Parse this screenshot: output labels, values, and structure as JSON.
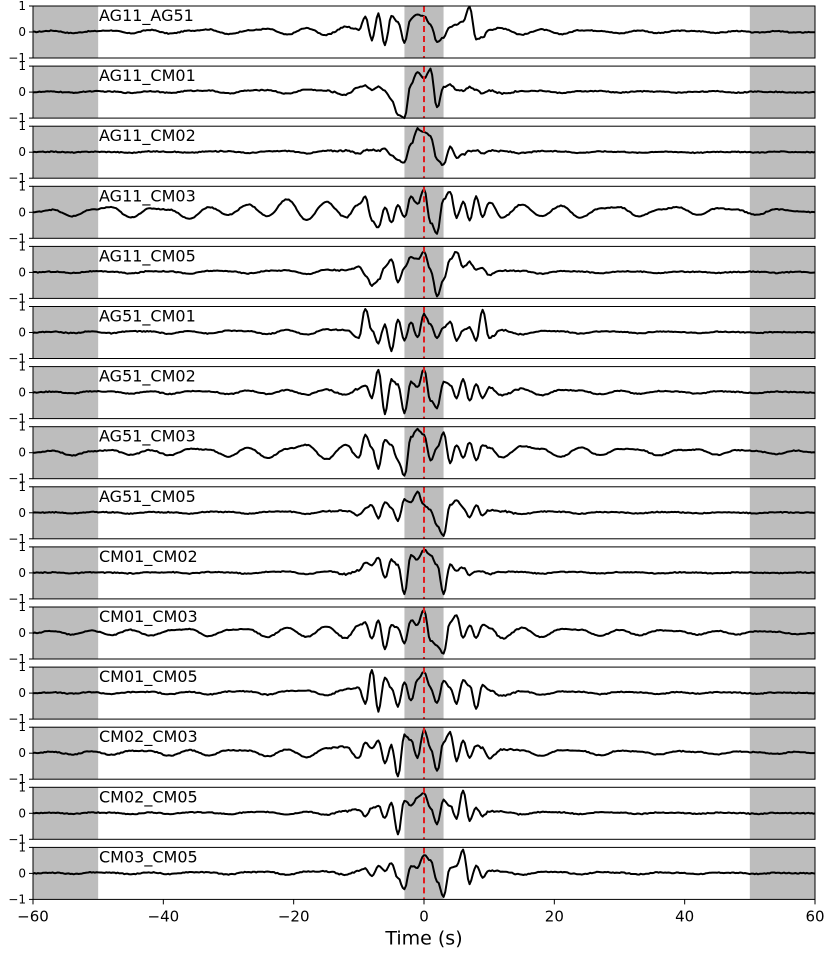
{
  "chart_data": {
    "type": "line",
    "xlabel": "Time (s)",
    "xlim": [
      -60,
      60
    ],
    "ylim": [
      -1,
      1
    ],
    "x_ticks": [
      "−60",
      "−40",
      "−20",
      "0",
      "20",
      "40",
      "60"
    ],
    "x_tick_values": [
      -60,
      -40,
      -20,
      0,
      20,
      40,
      60
    ],
    "y_ticks": [
      "1",
      "0",
      "−1"
    ],
    "y_tick_values": [
      1,
      0,
      -1
    ],
    "shaded_regions": [
      [
        -60,
        -50
      ],
      [
        -3,
        3
      ],
      [
        50,
        60
      ]
    ],
    "reference_line_x": 0,
    "colors": {
      "trace": "#000000",
      "reference_line": "#e41a1c",
      "shade": "#bdbdbd"
    },
    "grid": false,
    "sample_times": [
      -60,
      -57,
      -54,
      -51,
      -48,
      -45,
      -42,
      -39,
      -36,
      -33,
      -30,
      -27,
      -24,
      -21,
      -18,
      -15,
      -12,
      -10,
      -9,
      -8,
      -7,
      -6,
      -5,
      -4,
      -3,
      -2,
      -1,
      0,
      1,
      2,
      3,
      4,
      5,
      6,
      7,
      8,
      9,
      10,
      12,
      15,
      18,
      21,
      24,
      27,
      30,
      33,
      36,
      39,
      42,
      45,
      48,
      51,
      54,
      57,
      60
    ],
    "series": [
      {
        "name": "AG11_AG51",
        "values": [
          0,
          0.05,
          -0.04,
          0.03,
          0.06,
          -0.05,
          0.08,
          -0.06,
          0.05,
          0.1,
          -0.08,
          0.06,
          0.12,
          -0.1,
          0.15,
          -0.12,
          0.2,
          0.1,
          0.6,
          -0.3,
          0.7,
          -0.5,
          0.6,
          0.4,
          -0.4,
          0.5,
          0.7,
          0.6,
          0.3,
          -0.4,
          -0.2,
          0.2,
          0.3,
          0.4,
          1.0,
          -0.3,
          -0.2,
          0.1,
          0.15,
          -0.1,
          0.1,
          -0.08,
          0.07,
          0.05,
          -0.05,
          0.06,
          -0.04,
          0.05,
          0.03,
          -0.03,
          0.04,
          -0.02,
          0.03,
          -0.02,
          0
        ]
      },
      {
        "name": "AG11_CM01",
        "values": [
          0,
          0.02,
          -0.02,
          0.03,
          0.02,
          -0.03,
          0.04,
          -0.03,
          0.05,
          0.06,
          -0.05,
          0.06,
          0.08,
          -0.06,
          0.1,
          0.05,
          -0.1,
          0.2,
          0.25,
          0.1,
          0.2,
          0.05,
          -0.3,
          -0.9,
          -1.0,
          0.3,
          0.8,
          0.5,
          0.9,
          -0.6,
          0.2,
          0.3,
          0.1,
          0.05,
          0.2,
          0.1,
          -0.05,
          0.06,
          -0.05,
          0.04,
          0.05,
          -0.03,
          0.03,
          0.04,
          -0.02,
          0.03,
          0.02,
          -0.02,
          0.02,
          0.03,
          -0.02,
          0.02,
          0.01,
          -0.02,
          0
        ]
      },
      {
        "name": "AG11_CM02",
        "values": [
          0,
          0.02,
          -0.01,
          0.02,
          0.01,
          -0.02,
          0.03,
          0.02,
          -0.02,
          0.03,
          0.04,
          -0.03,
          0.03,
          0.05,
          -0.04,
          0.05,
          0.06,
          -0.05,
          0.08,
          0.1,
          0.05,
          0.12,
          -0.1,
          -0.3,
          -0.4,
          0.3,
          0.9,
          0.8,
          0.6,
          -0.3,
          -0.5,
          0.2,
          -0.2,
          -0.1,
          0.05,
          0.08,
          -0.05,
          0.06,
          0.04,
          -0.03,
          0.04,
          0.03,
          -0.02,
          0.03,
          0.02,
          -0.02,
          0.02,
          0.01,
          -0.02,
          0.02,
          0.01,
          -0.01,
          0.02,
          0.01,
          0
        ]
      },
      {
        "name": "AG11_CM03",
        "values": [
          0,
          0.1,
          -0.15,
          0.1,
          0.2,
          -0.2,
          0.15,
          0.1,
          -0.25,
          0.2,
          -0.1,
          0.3,
          -0.15,
          0.5,
          -0.3,
          0.4,
          -0.2,
          0.3,
          0.6,
          -0.3,
          -0.6,
          0.2,
          -0.4,
          0.3,
          -0.2,
          0.6,
          0.3,
          0.9,
          -0.4,
          -0.8,
          0.5,
          0.8,
          -0.2,
          0.4,
          -0.3,
          0.6,
          -0.2,
          0.4,
          -0.2,
          0.3,
          -0.15,
          0.25,
          -0.2,
          0.15,
          0.2,
          -0.15,
          0.1,
          0.2,
          -0.1,
          0.15,
          0.1,
          -0.1,
          0.12,
          0.05,
          0
        ]
      },
      {
        "name": "AG11_CM05",
        "values": [
          0,
          0.03,
          -0.02,
          0.04,
          0.03,
          -0.04,
          0.05,
          0.04,
          -0.05,
          0.06,
          0.05,
          -0.04,
          0.06,
          0.08,
          -0.06,
          0.1,
          0.08,
          0.2,
          -0.1,
          -0.5,
          -0.3,
          0.2,
          0.5,
          -0.4,
          0.2,
          0.6,
          0.5,
          0.8,
          0.1,
          -0.9,
          -0.3,
          0.5,
          0.8,
          0.2,
          0.4,
          0.1,
          0.15,
          -0.1,
          0.08,
          0.06,
          -0.05,
          0.05,
          0.04,
          -0.03,
          0.04,
          0.03,
          -0.02,
          0.03,
          0.02,
          -0.02,
          0.02,
          0.03,
          -0.02,
          0.02,
          0
        ]
      },
      {
        "name": "AG51_CM01",
        "values": [
          0,
          0.03,
          -0.02,
          0.04,
          -0.03,
          0.05,
          0.04,
          -0.05,
          0.06,
          -0.04,
          0.07,
          0.05,
          -0.06,
          0.1,
          -0.08,
          0.12,
          0.1,
          -0.2,
          0.9,
          0.1,
          -0.4,
          0.3,
          -0.7,
          0.5,
          -0.3,
          0.4,
          -0.2,
          0.7,
          0.3,
          -0.2,
          0.2,
          0.4,
          -0.3,
          0.1,
          0.2,
          -0.3,
          0.9,
          -0.2,
          0.1,
          -0.08,
          0.06,
          0.05,
          -0.04,
          0.04,
          0.03,
          -0.03,
          0.04,
          0.02,
          -0.02,
          0.03,
          0.02,
          -0.02,
          0.02,
          0.01,
          0
        ]
      },
      {
        "name": "AG51_CM02",
        "values": [
          0,
          0.04,
          -0.03,
          0.05,
          0.04,
          -0.04,
          0.05,
          -0.05,
          0.06,
          0.05,
          -0.06,
          0.08,
          -0.05,
          0.1,
          -0.08,
          0.12,
          -0.1,
          0.15,
          0.3,
          -0.2,
          0.9,
          -0.8,
          0.5,
          0.3,
          -0.8,
          0.4,
          0.2,
          0.9,
          -0.3,
          -0.6,
          0.4,
          0.3,
          -0.2,
          0.5,
          -0.3,
          0.3,
          -0.2,
          0.2,
          -0.1,
          0.15,
          -0.1,
          0.1,
          0.08,
          -0.06,
          0.07,
          -0.05,
          0.06,
          0.04,
          -0.04,
          0.05,
          0.03,
          -0.03,
          0.04,
          0.02,
          0
        ]
      },
      {
        "name": "AG51_CM03",
        "values": [
          0,
          0.08,
          -0.1,
          0.06,
          0.1,
          -0.08,
          0.1,
          -0.1,
          0.15,
          0.12,
          -0.15,
          0.2,
          -0.2,
          0.15,
          0.3,
          -0.25,
          0.3,
          -0.2,
          0.7,
          0.2,
          -0.6,
          0.5,
          0.3,
          -0.3,
          -0.9,
          0.6,
          0.9,
          0.7,
          -0.3,
          0.2,
          0.8,
          -0.4,
          0.3,
          -0.2,
          0.4,
          -0.3,
          0.3,
          0.2,
          -0.2,
          0.25,
          0.15,
          -0.15,
          0.2,
          -0.1,
          0.15,
          0.12,
          -0.1,
          0.1,
          0.12,
          -0.08,
          0.1,
          0.06,
          -0.05,
          0.08,
          0
        ]
      },
      {
        "name": "AG51_CM05",
        "values": [
          0,
          0.02,
          -0.02,
          0.03,
          0.02,
          -0.03,
          0.03,
          0.02,
          -0.03,
          0.04,
          0.03,
          -0.03,
          0.04,
          0.05,
          -0.04,
          0.06,
          0.08,
          -0.1,
          0.15,
          0.3,
          -0.2,
          0.4,
          0.2,
          -0.3,
          0.5,
          0.4,
          0.8,
          0.3,
          0.1,
          -0.5,
          -0.9,
          0.3,
          0.5,
          0.2,
          -0.2,
          0.3,
          -0.1,
          0.1,
          0.06,
          -0.05,
          0.05,
          0.04,
          -0.03,
          0.03,
          0.02,
          -0.02,
          0.03,
          0.02,
          -0.02,
          0.02,
          0.01,
          -0.02,
          0.02,
          0.01,
          0
        ]
      },
      {
        "name": "CM01_CM02",
        "values": [
          0,
          0.02,
          -0.01,
          0.02,
          0.01,
          -0.02,
          0.02,
          0.03,
          -0.02,
          0.03,
          0.02,
          -0.03,
          0.04,
          0.05,
          -0.04,
          0.06,
          -0.05,
          0.1,
          0.4,
          0.3,
          0.6,
          -0.2,
          0.5,
          0.3,
          -0.8,
          0.7,
          0.5,
          0.9,
          0.7,
          0.3,
          -0.8,
          0.3,
          0.1,
          0.2,
          -0.1,
          0.08,
          0.06,
          -0.05,
          0.05,
          0.04,
          -0.03,
          0.04,
          0.03,
          -0.02,
          0.03,
          0.02,
          -0.02,
          0.02,
          0.01,
          -0.02,
          0.02,
          0.01,
          -0.01,
          0.02,
          0
        ]
      },
      {
        "name": "CM01_CM03",
        "values": [
          0,
          0.08,
          -0.06,
          0.1,
          -0.08,
          0.12,
          -0.1,
          0.1,
          0.15,
          -0.12,
          0.12,
          0.15,
          -0.15,
          0.2,
          -0.15,
          0.25,
          -0.2,
          0.3,
          0.4,
          -0.2,
          0.5,
          -0.6,
          0.3,
          0.2,
          -0.4,
          0.5,
          0.3,
          0.9,
          -0.3,
          -0.5,
          -0.8,
          0.4,
          0.7,
          -0.2,
          0.3,
          -0.2,
          0.3,
          0.2,
          -0.2,
          0.2,
          -0.15,
          0.15,
          0.12,
          -0.1,
          0.12,
          -0.08,
          0.1,
          0.08,
          -0.06,
          0.08,
          -0.05,
          0.06,
          0.05,
          -0.04,
          0
        ]
      },
      {
        "name": "CM01_CM05",
        "values": [
          0,
          0.03,
          -0.02,
          0.04,
          -0.03,
          0.04,
          0.05,
          -0.04,
          0.05,
          -0.05,
          0.06,
          0.07,
          -0.06,
          0.08,
          0.1,
          -0.08,
          0.15,
          0.2,
          -0.4,
          0.9,
          -0.7,
          0.6,
          0.2,
          -0.5,
          0.4,
          -0.3,
          0.5,
          0.8,
          0.2,
          -0.4,
          0.5,
          0.2,
          -0.4,
          0.5,
          0.3,
          -0.6,
          0.3,
          0.1,
          -0.1,
          0.08,
          -0.06,
          0.06,
          0.05,
          -0.04,
          0.05,
          0.03,
          -0.03,
          0.04,
          -0.02,
          0.03,
          0.02,
          -0.02,
          0.02,
          0.01,
          0
        ]
      },
      {
        "name": "CM02_CM03",
        "values": [
          0,
          0.06,
          -0.05,
          0.08,
          -0.06,
          0.1,
          0.08,
          -0.1,
          0.12,
          -0.08,
          0.12,
          0.1,
          -0.12,
          0.15,
          -0.15,
          0.2,
          0.25,
          -0.2,
          0.4,
          0.2,
          0.5,
          -0.4,
          0.3,
          -0.9,
          0.7,
          0.5,
          -0.2,
          0.9,
          0.2,
          -0.7,
          0.4,
          0.8,
          -0.3,
          0.5,
          -0.2,
          0.3,
          0.2,
          -0.2,
          0.15,
          0.12,
          -0.1,
          0.12,
          0.1,
          -0.08,
          0.1,
          0.06,
          -0.05,
          0.08,
          0.05,
          -0.04,
          0.06,
          0.04,
          -0.03,
          0.05,
          0
        ]
      },
      {
        "name": "CM02_CM05",
        "values": [
          0,
          0.02,
          -0.02,
          0.03,
          0.02,
          -0.03,
          0.03,
          -0.02,
          0.04,
          0.03,
          -0.03,
          0.04,
          0.05,
          -0.04,
          0.06,
          -0.05,
          0.08,
          0.15,
          -0.1,
          0.2,
          0.3,
          -0.2,
          0.4,
          -0.8,
          0.5,
          0.3,
          0.6,
          0.8,
          0.2,
          -0.4,
          0.5,
          0.3,
          -0.2,
          0.9,
          -0.3,
          0.2,
          -0.1,
          0.08,
          0.06,
          -0.05,
          0.05,
          0.04,
          -0.03,
          0.04,
          0.03,
          -0.02,
          0.03,
          0.02,
          -0.02,
          0.02,
          0.01,
          -0.02,
          0.02,
          0.01,
          0
        ]
      },
      {
        "name": "CM03_CM05",
        "values": [
          0,
          0.03,
          -0.02,
          0.04,
          0.03,
          -0.03,
          0.04,
          -0.03,
          0.05,
          0.04,
          -0.04,
          0.05,
          0.06,
          -0.05,
          0.07,
          0.08,
          -0.06,
          0.1,
          0.2,
          -0.1,
          0.3,
          0.1,
          0.4,
          -0.2,
          -0.6,
          0.3,
          0.2,
          0.7,
          0.5,
          -0.3,
          -0.9,
          0.2,
          0.3,
          0.9,
          -0.4,
          0.3,
          -0.15,
          0.1,
          0.08,
          -0.06,
          0.06,
          0.05,
          -0.04,
          0.05,
          0.03,
          -0.03,
          0.04,
          0.02,
          -0.02,
          0.03,
          0.02,
          -0.02,
          0.02,
          0.01,
          0
        ]
      }
    ]
  }
}
